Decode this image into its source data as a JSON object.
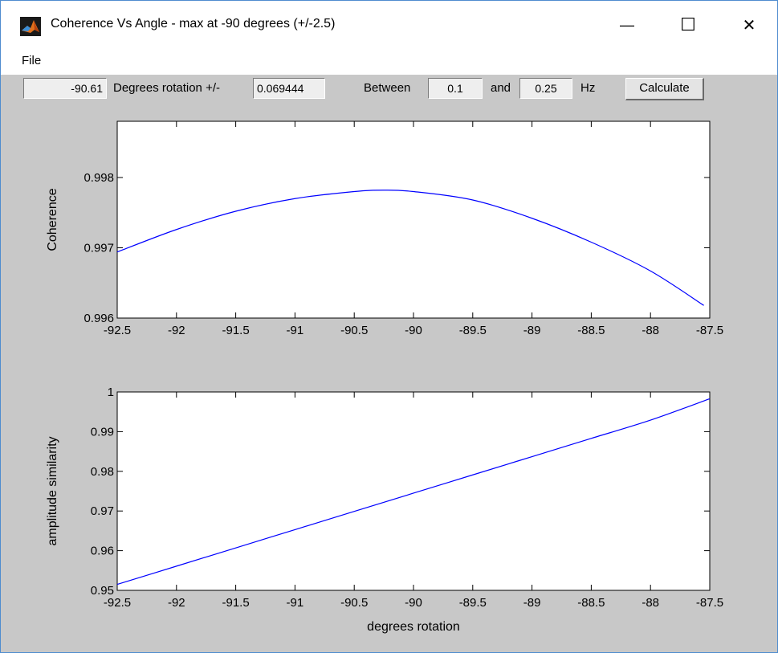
{
  "window": {
    "title": "Coherence Vs Angle - max at -90 degrees (+/-2.5)",
    "minimize_glyph": "—",
    "maximize_glyph": "☐",
    "close_glyph": "✕",
    "icon": "matlab-logo-icon"
  },
  "menu": {
    "file": "File"
  },
  "controls": {
    "max_angle": "-90.61",
    "rotation_label": "Degrees rotation +/-",
    "rotation_step": "0.069444",
    "between_label": "Between",
    "freq_low": "0.1",
    "and_label": "and",
    "freq_high": "0.25",
    "hz_label": "Hz",
    "calculate_label": "Calculate"
  },
  "colors": {
    "background": "#c8c8c8",
    "line": "#0000ff",
    "axes_bg": "#ffffff"
  },
  "chart_data": [
    {
      "type": "line",
      "title": "",
      "xlabel": "",
      "ylabel": "Coherence",
      "xlim": [
        -92.5,
        -87.5
      ],
      "ylim": [
        0.996,
        0.9988
      ],
      "xticks": [
        "-92.5",
        "-92",
        "-91.5",
        "-91",
        "-90.5",
        "-90",
        "-89.5",
        "-89",
        "-88.5",
        "-88",
        "-87.5"
      ],
      "yticks": [
        "0.996",
        "0.997",
        "0.998"
      ],
      "grid": false,
      "x": [
        -92.5,
        -92,
        -91.5,
        -91,
        -90.5,
        -90.25,
        -90,
        -89.5,
        -89,
        -88.5,
        -88,
        -87.55
      ],
      "y": [
        0.99694,
        0.99726,
        0.99752,
        0.9977,
        0.9978,
        0.99782,
        0.9978,
        0.99768,
        0.99742,
        0.99708,
        0.99667,
        0.99618
      ]
    },
    {
      "type": "line",
      "title": "",
      "xlabel": "degrees rotation",
      "ylabel": "amplitude similarity",
      "xlim": [
        -92.5,
        -87.5
      ],
      "ylim": [
        0.95,
        1.0
      ],
      "xticks": [
        "-92.5",
        "-92",
        "-91.5",
        "-91",
        "-90.5",
        "-90",
        "-89.5",
        "-89",
        "-88.5",
        "-88",
        "-87.5"
      ],
      "yticks": [
        "0.95",
        "0.96",
        "0.97",
        "0.98",
        "0.99",
        "1"
      ],
      "grid": false,
      "x": [
        -92.5,
        -92,
        -91.5,
        -91,
        -90.5,
        -90,
        -89.5,
        -89,
        -88.5,
        -88,
        -87.5
      ],
      "y": [
        0.9515,
        0.9561,
        0.9607,
        0.9653,
        0.9699,
        0.9745,
        0.9791,
        0.9837,
        0.9883,
        0.9929,
        0.9983
      ]
    }
  ]
}
